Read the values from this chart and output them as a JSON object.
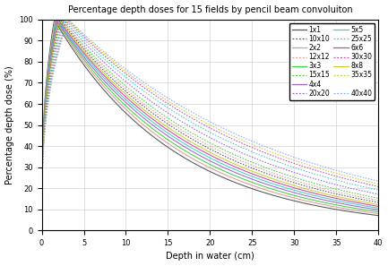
{
  "title": "Percentage depth doses for 15 fields by pencil beam convoluiton",
  "xlabel": "Depth in water (cm)",
  "ylabel": "Percentage depth dose (%)",
  "xlim": [
    0,
    40
  ],
  "ylim": [
    0,
    100
  ],
  "fields": [
    {
      "label": "1x1",
      "color": "#555555",
      "linestyle": "solid",
      "group": "solid"
    },
    {
      "label": "2x2",
      "color": "#dd9999",
      "linestyle": "solid",
      "group": "solid"
    },
    {
      "label": "3x3",
      "color": "#44cc44",
      "linestyle": "solid",
      "group": "solid"
    },
    {
      "label": "4x4",
      "color": "#9966cc",
      "linestyle": "solid",
      "group": "solid"
    },
    {
      "label": "5x5",
      "color": "#44cccc",
      "linestyle": "solid",
      "group": "solid"
    },
    {
      "label": "6x6",
      "color": "#cc44aa",
      "linestyle": "solid",
      "group": "solid"
    },
    {
      "label": "8x8",
      "color": "#cccc33",
      "linestyle": "solid",
      "group": "solid"
    },
    {
      "label": "10x10",
      "color": "#555555",
      "linestyle": "dotted",
      "group": "dotted"
    },
    {
      "label": "12x12",
      "color": "#dd9999",
      "linestyle": "dotted",
      "group": "dotted"
    },
    {
      "label": "15x15",
      "color": "#44cc44",
      "linestyle": "dotted",
      "group": "dotted"
    },
    {
      "label": "20x20",
      "color": "#9966cc",
      "linestyle": "dotted",
      "group": "dotted"
    },
    {
      "label": "25x25",
      "color": "#44cccc",
      "linestyle": "dotted",
      "group": "dotted"
    },
    {
      "label": "30x30",
      "color": "#cc44aa",
      "linestyle": "dotted",
      "group": "dotted"
    },
    {
      "label": "35x35",
      "color": "#cccc33",
      "linestyle": "dotted",
      "group": "dotted"
    },
    {
      "label": "40x40",
      "color": "#88aaff",
      "linestyle": "dotted",
      "group": "dotted"
    }
  ],
  "dmax_depths": [
    1.5,
    1.6,
    1.7,
    1.8,
    1.9,
    2.0,
    2.1,
    2.2,
    2.3,
    2.4,
    2.6,
    2.8,
    3.0,
    3.1,
    3.2
  ],
  "falloff_mu": [
    0.069,
    0.066,
    0.0635,
    0.061,
    0.059,
    0.0572,
    0.0555,
    0.0535,
    0.0518,
    0.05,
    0.0472,
    0.0445,
    0.0425,
    0.041,
    0.0395
  ]
}
